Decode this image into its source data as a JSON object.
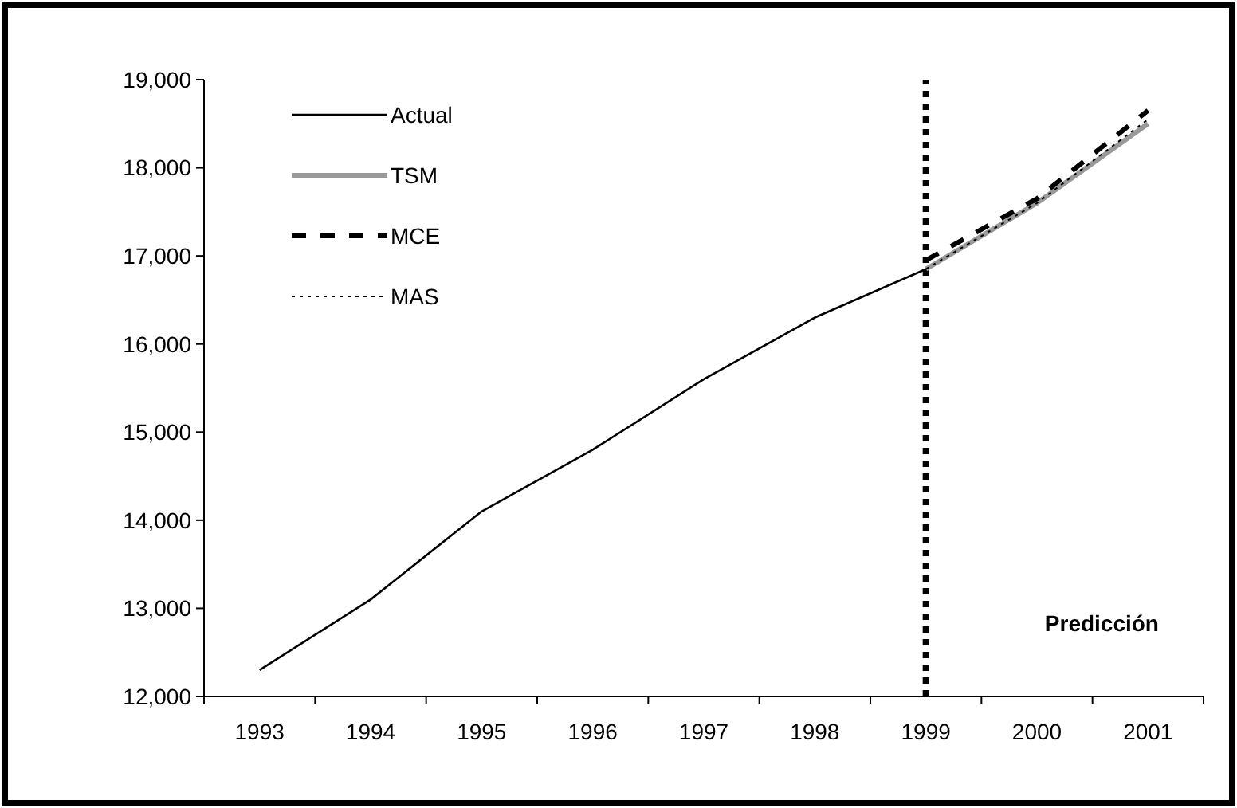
{
  "chart_data": {
    "type": "line",
    "categories": [
      "1993",
      "1994",
      "1995",
      "1996",
      "1997",
      "1998",
      "1999",
      "2000",
      "2001"
    ],
    "series": [
      {
        "name": "Actual",
        "color": "#000000",
        "line_style": "solid",
        "values": [
          12300,
          13100,
          14100,
          14800,
          15600,
          16300,
          16850,
          null,
          null
        ]
      },
      {
        "name": "TSM",
        "color": "#999999",
        "line_style": "solid",
        "values": [
          null,
          null,
          null,
          null,
          null,
          null,
          16850,
          17600,
          18500
        ]
      },
      {
        "name": "MCE",
        "color": "#000000",
        "line_style": "dashed",
        "values": [
          null,
          null,
          null,
          null,
          null,
          null,
          16950,
          17650,
          18650
        ]
      },
      {
        "name": "MAS",
        "color": "#000000",
        "line_style": "dotted",
        "values": [
          null,
          null,
          null,
          null,
          null,
          null,
          16850,
          17600,
          18550
        ]
      }
    ],
    "ylim": [
      12000,
      19000
    ],
    "yticks": [
      {
        "value": 12000,
        "label": "12,000"
      },
      {
        "value": 13000,
        "label": "13,000"
      },
      {
        "value": 14000,
        "label": "14,000"
      },
      {
        "value": 15000,
        "label": "15,000"
      },
      {
        "value": 16000,
        "label": "16,000"
      },
      {
        "value": 17000,
        "label": "17,000"
      },
      {
        "value": 18000,
        "label": "18,000"
      },
      {
        "value": 19000,
        "label": "19,000"
      }
    ],
    "ref_lines": [
      {
        "axis": "x",
        "value": "1999",
        "color": "#000000",
        "line_style": "dotted"
      }
    ],
    "annotations": [
      "Predicción"
    ],
    "legend": "top left",
    "grid": false,
    "marker": "none"
  }
}
